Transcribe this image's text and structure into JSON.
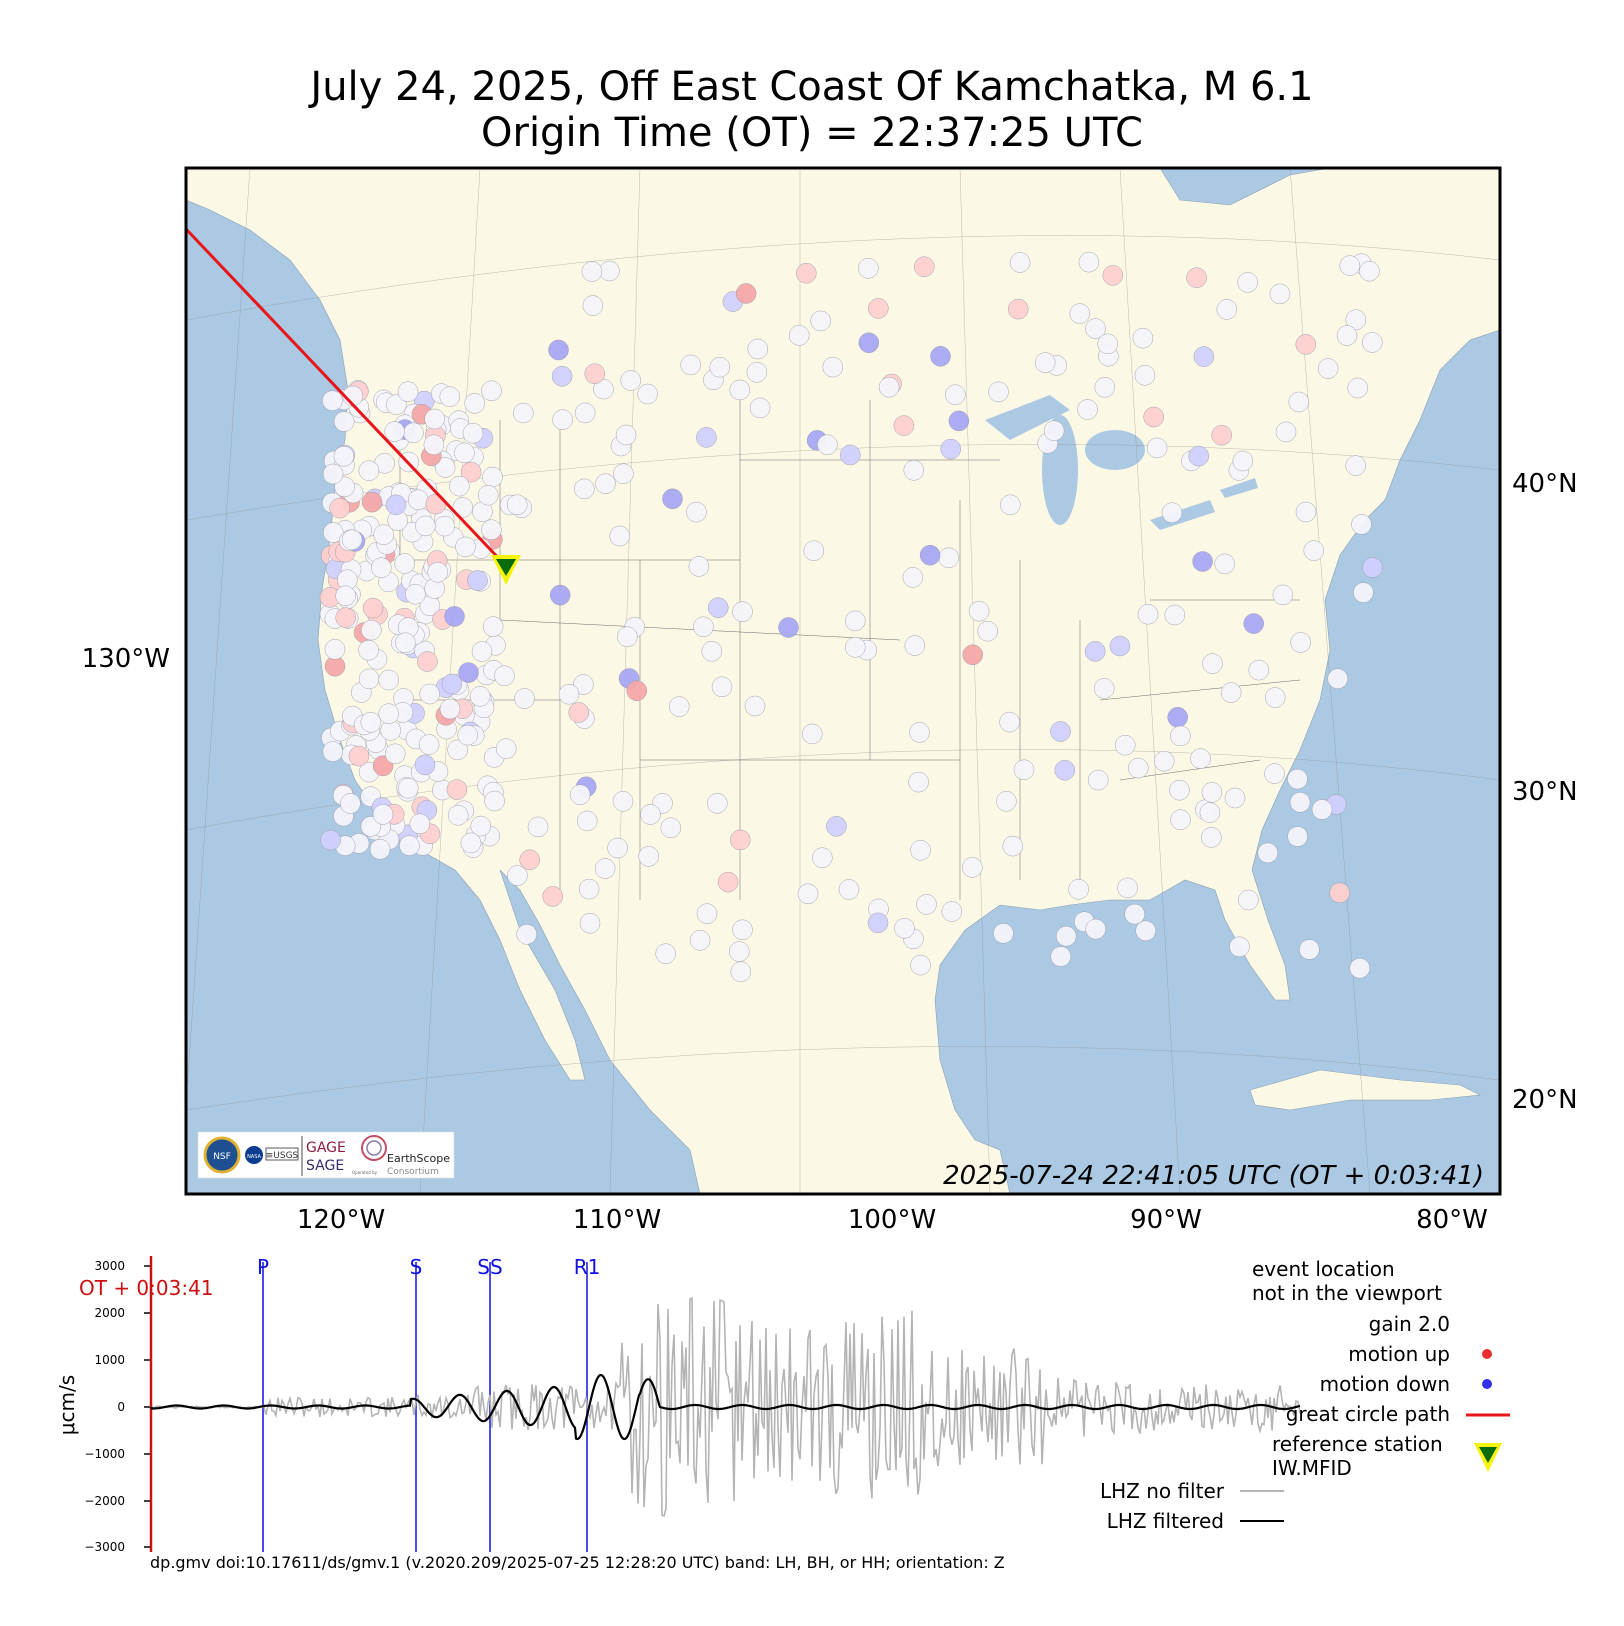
{
  "title": "July 24, 2025, Off East Coast Of Kamchatka, M 6.1",
  "subtitle": "Origin Time (OT) = 22:37:25 UTC",
  "map": {
    "timestamp": "2025-07-24 22:41:05 UTC (OT + 0:03:41)",
    "lon_labels": [
      "120°W",
      "110°W",
      "100°W",
      "90°W",
      "80°W"
    ],
    "left_label": "130°W",
    "lat_labels": [
      "40°N",
      "30°N",
      "20°N"
    ],
    "colors": {
      "ocean": "#abc9e3",
      "land": "#fcf8e6",
      "path": "#e8151b",
      "station_up": "#f28b8b",
      "station_down": "#8b8bf2",
      "reference": "#0a6b0a"
    },
    "logos": {
      "gage": "GAGE",
      "sage": "SAGE",
      "earthscope": "EarthScope",
      "consortium": "Consortium",
      "operated": "Operated by",
      "usgs": "≡USGS",
      "nasa": "NASA",
      "nsf": "NSF"
    }
  },
  "seismogram": {
    "ylabel": "μcm/s",
    "yticks": [
      "3000",
      "2000",
      "1000",
      "0",
      "−1000",
      "−2000",
      "−3000"
    ],
    "ot_marker": "OT + 0:03:41",
    "phases": [
      "P",
      "S",
      "SS",
      "R1"
    ],
    "legend": {
      "event_line1": "event location",
      "event_line2": "not in the viewport",
      "gain": "gain  2.0",
      "motion_up": "motion up",
      "motion_down": "motion down",
      "gcp": "great circle path",
      "ref1": "reference station",
      "ref2": "IW.MFID",
      "nofilter": "LHZ no filter",
      "filtered": "LHZ filtered"
    },
    "footer": "dp.gmv doi:10.17611/ds/gmv.1 (v.2020.209/2025-07-25 12:28:20 UTC) band: LH, BH, or HH; orientation: Z"
  }
}
